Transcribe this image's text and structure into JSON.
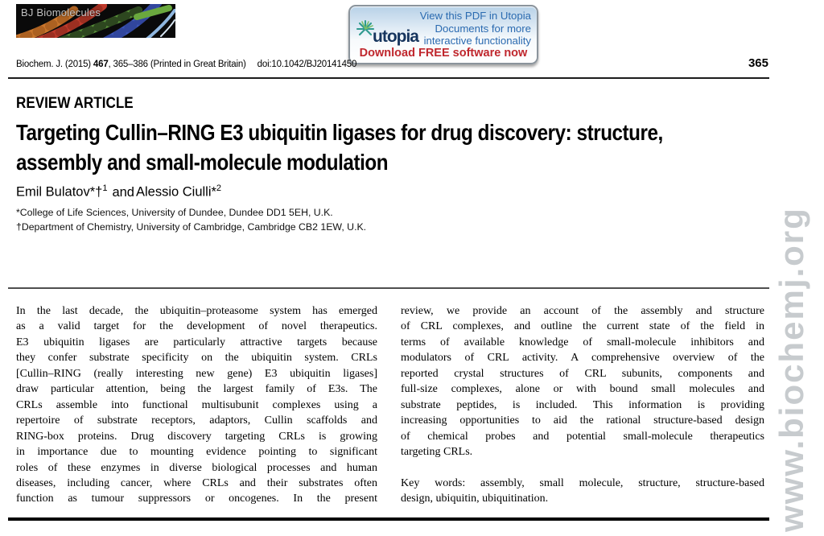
{
  "banner": {
    "label": "BJ Biomolecules"
  },
  "utopia": {
    "logo_text": "utopia",
    "promo_lines": [
      "View this PDF in Utopia",
      "Documents for more",
      "interactive functionality"
    ],
    "download_label": "Download FREE software now",
    "colors": {
      "blue": "#2a6ab0",
      "red": "#c0272d",
      "navy": "#16355e",
      "teal": "#2f9a8e"
    }
  },
  "citation": {
    "journal_prefix": "Biochem. J. (2015) ",
    "volume": "467",
    "pages_suffix": ", 365–386 (Printed in Great Britain)",
    "doi": "doi:10.1042/BJ20141450",
    "page_number": "365"
  },
  "article": {
    "kicker": "REVIEW ARTICLE",
    "title_lines": [
      "Targeting Cullin–RING E3 ubiquitin ligases for drug discovery: structure,",
      "assembly and small-molecule modulation"
    ],
    "authors": {
      "author1_name": "Emil Bulatov",
      "author1_marks": "*†",
      "author1_sup": "1",
      "connector": "and",
      "author2_name": "Alessio Ciulli",
      "author2_marks": "*",
      "author2_sup": "2"
    },
    "affiliation_lines": [
      "*College of Life Sciences, University of Dundee, Dundee DD1 5EH, U.K.",
      "†Department of Chemistry, University of Cambridge, Cambridge CB2 1EW, U.K."
    ]
  },
  "abstract": {
    "left_column_lines": [
      "In the last decade, the ubiquitin–proteasome system has emerged",
      "as a valid target for the development of novel therapeutics.",
      "E3 ubiquitin ligases are particularly attractive targets because",
      "they confer substrate specificity on the ubiquitin system. CRLs",
      "[Cullin–RING (really interesting new gene) E3 ubiquitin ligases]",
      "draw particular attention, being the largest family of E3s. The",
      "CRLs assemble into functional multisubunit complexes using a",
      "repertoire of substrate receptors, adaptors, Cullin scaffolds and",
      "RING-box proteins. Drug discovery targeting CRLs is growing",
      "in importance due to mounting evidence pointing to significant",
      "roles of these enzymes in diverse biological processes and human",
      "diseases, including cancer, where CRLs and their substrates often",
      "function as tumour suppressors or oncogenes. In the present"
    ],
    "right_column_lines": [
      "review, we provide an account of the assembly and structure",
      "of CRL complexes, and outline the current state of the field in",
      "terms of available knowledge of small-molecule inhibitors and",
      "modulators of CRL activity. A comprehensive overview of the",
      "reported crystal structures of CRL subunits, components and",
      "full-size complexes, alone or with bound small molecules and",
      "substrate peptides, is included. This information is providing",
      "increasing opportunities to aid the rational structure-based design",
      "of chemical probes and potential small-molecule therapeutics",
      "targeting CRLs."
    ],
    "keywords_lines": [
      "Key words: assembly, small molecule, structure, structure-based",
      "design, ubiquitin, ubiquitination."
    ]
  },
  "watermark": "www.biochemj.org"
}
